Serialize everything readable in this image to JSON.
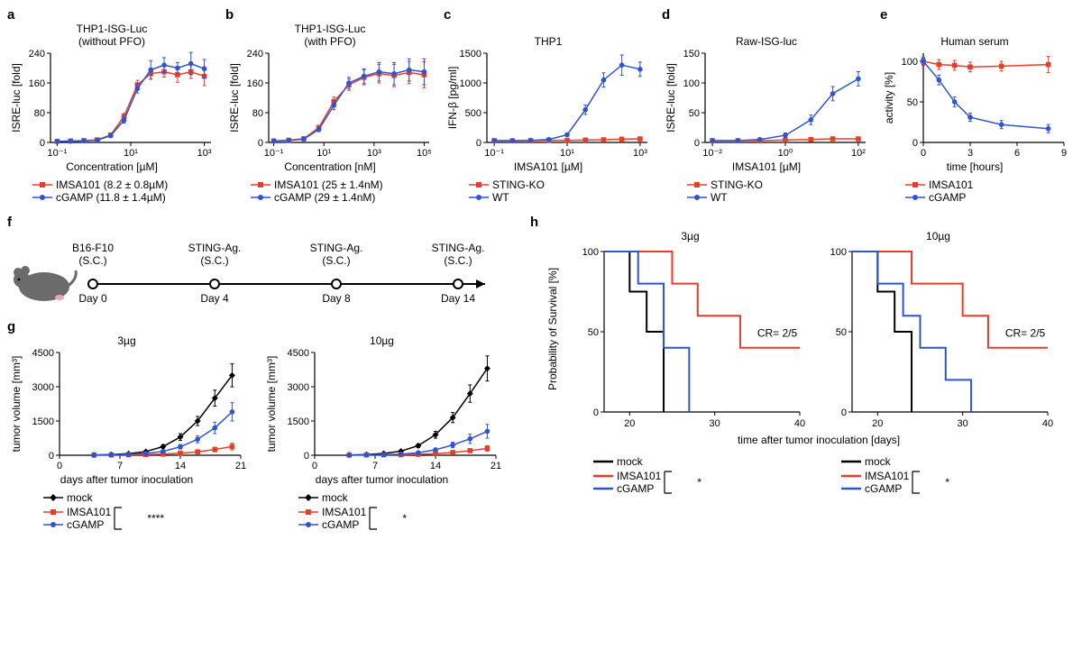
{
  "colors": {
    "imsa": "#e63e2b",
    "cgamp": "#2f54d0",
    "mock": "#000000",
    "axis": "#000000",
    "grid": "#ffffff",
    "panel_bg": "#ffffff"
  },
  "fonts": {
    "label_fontsize": 12,
    "title_fontsize": 12,
    "panel_label_fontsize": 15
  },
  "a": {
    "label": "a",
    "title_line1": "THP1-ISG-Luc",
    "title_line2": "(without PFO)",
    "ylabel": "ISRE-luc [fold]",
    "xlabel": "Concentration [µM]",
    "x_ticks": [
      "10⁻¹",
      "10¹",
      "10³"
    ],
    "y_ticks": [
      0,
      80,
      160,
      240
    ],
    "ylim": [
      0,
      240
    ],
    "type": "scatter-line-log",
    "series": [
      {
        "name": "IMSA101",
        "color": "#e63e2b",
        "marker": "square",
        "x_log": [
          -1.3,
          -0.9,
          -0.5,
          -0.1,
          0.3,
          0.7,
          1.1,
          1.5,
          1.9,
          2.3,
          2.7,
          3.1
        ],
        "y": [
          3,
          4,
          5,
          7,
          20,
          70,
          155,
          185,
          190,
          182,
          190,
          178
        ],
        "err": [
          2,
          2,
          2,
          2,
          4,
          8,
          12,
          15,
          14,
          20,
          18,
          25
        ]
      },
      {
        "name": "cGAMP",
        "color": "#2f54d0",
        "marker": "circle",
        "x_log": [
          -1.3,
          -0.9,
          -0.5,
          -0.1,
          0.3,
          0.7,
          1.1,
          1.5,
          1.9,
          2.3,
          2.7,
          3.1
        ],
        "y": [
          3,
          3,
          4,
          6,
          18,
          60,
          145,
          195,
          208,
          200,
          212,
          198
        ],
        "err": [
          2,
          2,
          2,
          2,
          4,
          8,
          12,
          25,
          20,
          15,
          30,
          25
        ]
      }
    ],
    "legend": [
      "IMSA101 (8.2 ± 0.8µM)",
      "cGAMP (11.8 ± 1.4µM)"
    ]
  },
  "b": {
    "label": "b",
    "title_line1": "THP1-ISG-Luc",
    "title_line2": "(with PFO)",
    "ylabel": "ISRE-luc [fold]",
    "xlabel": "Concentration [nM]",
    "x_ticks": [
      "10⁻¹",
      "10¹",
      "10³",
      "10⁵"
    ],
    "y_ticks": [
      0,
      80,
      160,
      240
    ],
    "ylim": [
      0,
      240
    ],
    "type": "scatter-line-log",
    "series": [
      {
        "name": "IMSA101",
        "color": "#e63e2b",
        "marker": "square",
        "x_log": [
          -1,
          -0.4,
          0.2,
          0.8,
          1.4,
          2.0,
          2.6,
          3.2,
          3.8,
          4.4,
          5.0
        ],
        "y": [
          4,
          6,
          10,
          40,
          110,
          155,
          175,
          185,
          180,
          188,
          182
        ],
        "err": [
          2,
          2,
          3,
          6,
          12,
          15,
          20,
          25,
          30,
          30,
          35
        ]
      },
      {
        "name": "cGAMP",
        "color": "#2f54d0",
        "marker": "circle",
        "x_log": [
          -1,
          -0.4,
          0.2,
          0.8,
          1.4,
          2.0,
          2.6,
          3.2,
          3.8,
          4.4,
          5.0
        ],
        "y": [
          4,
          5,
          9,
          35,
          100,
          160,
          178,
          190,
          185,
          195,
          190
        ],
        "err": [
          2,
          2,
          3,
          6,
          12,
          15,
          20,
          25,
          30,
          30,
          35
        ]
      }
    ],
    "legend": [
      "IMSA101 (25 ± 1.4nM)",
      "cGAMP (29 ± 1.4nM)"
    ]
  },
  "c": {
    "label": "c",
    "title_line1": "THP1",
    "ylabel": "IFN-β [pg/ml]",
    "xlabel": "IMSA101 [µM]",
    "x_ticks": [
      "10⁻¹",
      "10¹",
      "10³"
    ],
    "y_ticks": [
      0,
      500,
      1000,
      1500
    ],
    "ylim": [
      0,
      1500
    ],
    "type": "scatter-line-log",
    "series": [
      {
        "name": "STING-KO",
        "color": "#e63e2b",
        "marker": "square",
        "x_log": [
          -1,
          -0.5,
          0,
          0.5,
          1,
          1.5,
          2,
          2.5,
          3
        ],
        "y": [
          30,
          28,
          30,
          35,
          35,
          40,
          45,
          55,
          60
        ],
        "err": [
          20,
          15,
          15,
          15,
          15,
          15,
          15,
          20,
          20
        ]
      },
      {
        "name": "WT",
        "color": "#2f54d0",
        "marker": "circle",
        "x_log": [
          -1,
          -0.5,
          0,
          0.5,
          1,
          1.5,
          2,
          2.5,
          3
        ],
        "y": [
          30,
          30,
          35,
          50,
          130,
          550,
          1050,
          1300,
          1230
        ],
        "err": [
          20,
          15,
          15,
          20,
          30,
          80,
          120,
          170,
          120
        ]
      }
    ],
    "legend": [
      "STING-KO",
      "WT"
    ]
  },
  "d": {
    "label": "d",
    "title_line1": "Raw-ISG-luc",
    "ylabel": "ISRE-luc [fold]",
    "xlabel": "IMSA101 [µM]",
    "x_ticks": [
      "10⁻²",
      "10⁰",
      "10²"
    ],
    "y_ticks": [
      0,
      50,
      100,
      150
    ],
    "ylim": [
      0,
      150
    ],
    "type": "scatter-line-log",
    "series": [
      {
        "name": "STING-KO",
        "color": "#e63e2b",
        "marker": "square",
        "x_log": [
          -2,
          -1.3,
          -0.7,
          0,
          0.7,
          1.3,
          2
        ],
        "y": [
          3,
          3,
          3,
          4,
          5,
          6,
          6
        ],
        "err": [
          2,
          2,
          2,
          2,
          2,
          2,
          2
        ]
      },
      {
        "name": "WT",
        "color": "#2f54d0",
        "marker": "circle",
        "x_log": [
          -2,
          -1.3,
          -0.7,
          0,
          0.7,
          1.3,
          2
        ],
        "y": [
          3,
          3,
          5,
          12,
          38,
          82,
          107
        ],
        "err": [
          2,
          2,
          2,
          4,
          8,
          12,
          12
        ]
      }
    ],
    "legend": [
      "STING-KO",
      "WT"
    ]
  },
  "e": {
    "label": "e",
    "title_line1": "Human serum",
    "ylabel": "activity [%]",
    "xlabel": "time [hours]",
    "x_ticks": [
      0,
      3,
      6,
      9
    ],
    "xlim": [
      0,
      9
    ],
    "y_ticks": [
      0,
      50,
      100
    ],
    "ylim": [
      0,
      110
    ],
    "type": "scatter-line-linear",
    "series": [
      {
        "name": "IMSA101",
        "color": "#e63e2b",
        "marker": "square",
        "x": [
          0,
          1,
          2,
          3,
          5,
          8
        ],
        "y": [
          100,
          96,
          95,
          93,
          94,
          96
        ],
        "err": [
          5,
          6,
          6,
          6,
          6,
          10
        ]
      },
      {
        "name": "cGAMP",
        "color": "#2f54d0",
        "marker": "circle",
        "x": [
          0,
          1,
          2,
          3,
          5,
          8
        ],
        "y": [
          100,
          77,
          50,
          31,
          22,
          17
        ],
        "err": [
          4,
          6,
          6,
          5,
          5,
          5
        ]
      }
    ],
    "legend": [
      "IMSA101",
      "cGAMP"
    ]
  },
  "f": {
    "label": "f",
    "points": [
      {
        "line1": "B16-F10",
        "line2": "(S.C.)",
        "day": "Day 0"
      },
      {
        "line1": "STING-Ag.",
        "line2": "(S.C.)",
        "day": "Day 4"
      },
      {
        "line1": "STING-Ag.",
        "line2": "(S.C.)",
        "day": "Day 8"
      },
      {
        "line1": "STING-Ag.",
        "line2": "(S.C.)",
        "day": "Day 14"
      }
    ]
  },
  "g": {
    "label": "g",
    "ylabel": "tumor volume [mm³]",
    "xlabel": "days after tumor inoculation",
    "x_ticks": [
      0,
      7,
      14,
      21
    ],
    "xlim": [
      0,
      21
    ],
    "y_ticks": [
      0,
      1500,
      3000,
      4500
    ],
    "ylim": [
      0,
      4500
    ],
    "type": "scatter-line-linear",
    "panels": [
      {
        "title": "3µg",
        "series": [
          {
            "name": "mock",
            "color": "#000000",
            "marker": "diamond",
            "x": [
              4,
              6,
              8,
              10,
              12,
              14,
              16,
              18,
              20
            ],
            "y": [
              10,
              30,
              70,
              160,
              380,
              800,
              1500,
              2500,
              3500
            ],
            "err": [
              10,
              10,
              20,
              40,
              80,
              150,
              200,
              350,
              500
            ]
          },
          {
            "name": "IMSA101",
            "color": "#e63e2b",
            "marker": "square",
            "x": [
              4,
              6,
              8,
              10,
              12,
              14,
              16,
              18,
              20
            ],
            "y": [
              10,
              15,
              20,
              30,
              50,
              90,
              150,
              250,
              380
            ],
            "err": [
              5,
              5,
              8,
              10,
              20,
              40,
              60,
              100,
              150
            ]
          },
          {
            "name": "cGAMP",
            "color": "#2f54d0",
            "marker": "circle",
            "x": [
              4,
              6,
              8,
              10,
              12,
              14,
              16,
              18,
              20
            ],
            "y": [
              10,
              20,
              40,
              80,
              170,
              370,
              700,
              1200,
              1900
            ],
            "err": [
              5,
              8,
              15,
              30,
              60,
              100,
              150,
              250,
              400
            ]
          }
        ],
        "stars": "****"
      },
      {
        "title": "10µg",
        "series": [
          {
            "name": "mock",
            "color": "#000000",
            "marker": "diamond",
            "x": [
              4,
              6,
              8,
              10,
              12,
              14,
              16,
              18,
              20
            ],
            "y": [
              10,
              30,
              80,
              180,
              420,
              900,
              1650,
              2700,
              3800
            ],
            "err": [
              10,
              10,
              20,
              40,
              80,
              150,
              220,
              380,
              550
            ]
          },
          {
            "name": "IMSA101",
            "color": "#e63e2b",
            "marker": "square",
            "x": [
              4,
              6,
              8,
              10,
              12,
              14,
              16,
              18,
              20
            ],
            "y": [
              10,
              15,
              18,
              25,
              40,
              70,
              120,
              200,
              300
            ],
            "err": [
              5,
              5,
              6,
              8,
              15,
              30,
              50,
              80,
              120
            ]
          },
          {
            "name": "cGAMP",
            "color": "#2f54d0",
            "marker": "circle",
            "x": [
              4,
              6,
              8,
              10,
              12,
              14,
              16,
              18,
              20
            ],
            "y": [
              10,
              15,
              25,
              50,
              110,
              240,
              450,
              720,
              1050
            ],
            "err": [
              5,
              6,
              10,
              20,
              40,
              70,
              120,
              200,
              300
            ]
          }
        ],
        "stars": "*"
      }
    ],
    "legend": [
      "mock",
      "IMSA101",
      "cGAMP"
    ]
  },
  "h": {
    "label": "h",
    "ylabel": "Probability of Survival [%]",
    "xlabel": "time after tumor inoculation [days]",
    "x_ticks": [
      20,
      30,
      40
    ],
    "xlim": [
      17,
      40
    ],
    "y_ticks": [
      0,
      50,
      100
    ],
    "ylim": [
      0,
      100
    ],
    "type": "survival-step",
    "line_width": 2,
    "panels": [
      {
        "title": "3µg",
        "series": [
          {
            "name": "mock",
            "color": "#000000",
            "steps": [
              [
                17,
                100
              ],
              [
                20,
                100
              ],
              [
                20,
                75
              ],
              [
                22,
                75
              ],
              [
                22,
                50
              ],
              [
                24,
                50
              ],
              [
                24,
                0
              ]
            ]
          },
          {
            "name": "IMSA101",
            "color": "#e63e2b",
            "steps": [
              [
                17,
                100
              ],
              [
                25,
                100
              ],
              [
                25,
                80
              ],
              [
                28,
                80
              ],
              [
                28,
                60
              ],
              [
                33,
                60
              ],
              [
                33,
                40
              ],
              [
                40,
                40
              ]
            ]
          },
          {
            "name": "cGAMP",
            "color": "#2f54d0",
            "steps": [
              [
                17,
                100
              ],
              [
                21,
                100
              ],
              [
                21,
                80
              ],
              [
                24,
                80
              ],
              [
                24,
                40
              ],
              [
                27,
                40
              ],
              [
                27,
                0
              ]
            ]
          }
        ],
        "cr": "CR= 2/5",
        "stars": "*"
      },
      {
        "title": "10µg",
        "series": [
          {
            "name": "mock",
            "color": "#000000",
            "steps": [
              [
                17,
                100
              ],
              [
                20,
                100
              ],
              [
                20,
                75
              ],
              [
                22,
                75
              ],
              [
                22,
                50
              ],
              [
                24,
                50
              ],
              [
                24,
                0
              ]
            ]
          },
          {
            "name": "IMSA101",
            "color": "#e63e2b",
            "steps": [
              [
                17,
                100
              ],
              [
                24,
                100
              ],
              [
                24,
                80
              ],
              [
                30,
                80
              ],
              [
                30,
                60
              ],
              [
                33,
                60
              ],
              [
                33,
                40
              ],
              [
                40,
                40
              ]
            ]
          },
          {
            "name": "cGAMP",
            "color": "#2f54d0",
            "steps": [
              [
                17,
                100
              ],
              [
                20,
                100
              ],
              [
                20,
                80
              ],
              [
                23,
                80
              ],
              [
                23,
                60
              ],
              [
                25,
                60
              ],
              [
                25,
                40
              ],
              [
                28,
                40
              ],
              [
                28,
                20
              ],
              [
                31,
                20
              ],
              [
                31,
                0
              ]
            ]
          }
        ],
        "cr": "CR= 2/5",
        "stars": "*"
      }
    ],
    "legend": [
      "mock",
      "IMSA101",
      "cGAMP"
    ]
  }
}
